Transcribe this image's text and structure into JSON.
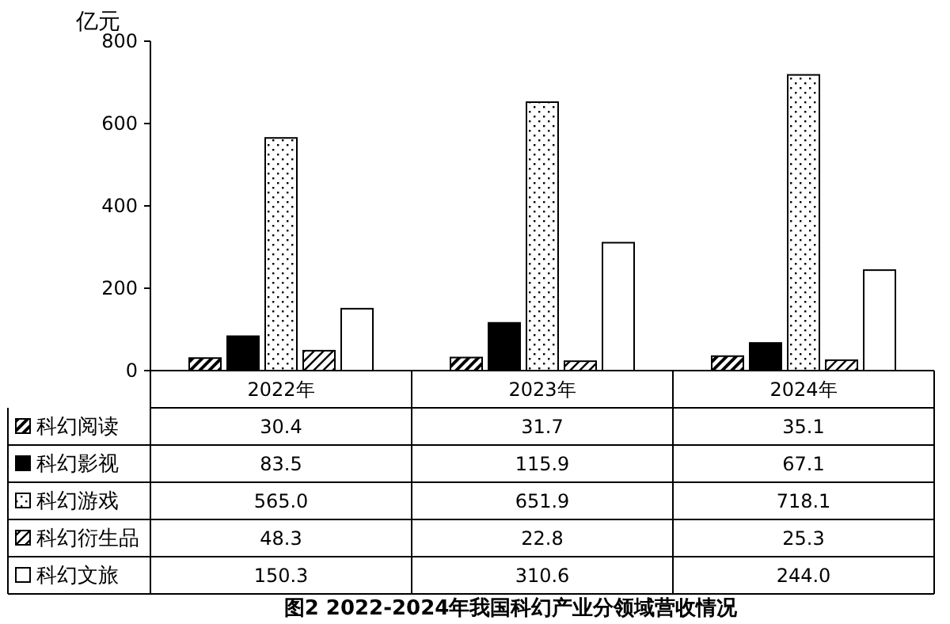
{
  "chart_data": {
    "type": "bar",
    "title": "图2 2022-2024年我国科幻产业分领域营收情况",
    "ylabel": "亿元",
    "categories": [
      "2022年",
      "2023年",
      "2024年"
    ],
    "series": [
      {
        "name": "科幻阅读",
        "color": "#000000",
        "values": [
          30.4,
          31.7,
          35.1
        ],
        "value_labels": [
          "30.4",
          "31.7",
          "35.1"
        ]
      },
      {
        "name": "科幻影视",
        "color": "#000000",
        "values": [
          83.5,
          115.9,
          67.1
        ],
        "value_labels": [
          "83.5",
          "115.9",
          "67.1"
        ]
      },
      {
        "name": "科幻游戏",
        "color": "#000000",
        "values": [
          565.0,
          651.9,
          718.1
        ],
        "value_labels": [
          "565.0",
          "651.9",
          "718.1"
        ]
      },
      {
        "name": "科幻衍生品",
        "color": "#000000",
        "values": [
          48.3,
          22.8,
          25.3
        ],
        "value_labels": [
          "48.3",
          "22.8",
          "25.3"
        ]
      },
      {
        "name": "科幻文旅",
        "color": "#ffffff",
        "values": [
          150.3,
          310.6,
          244.0
        ],
        "value_labels": [
          "150.3",
          "310.6",
          "244.0"
        ]
      }
    ],
    "ylim": [
      0,
      800
    ],
    "yticks": [
      0,
      200,
      400,
      600,
      800
    ],
    "grid": false,
    "legend": "bottom left"
  }
}
